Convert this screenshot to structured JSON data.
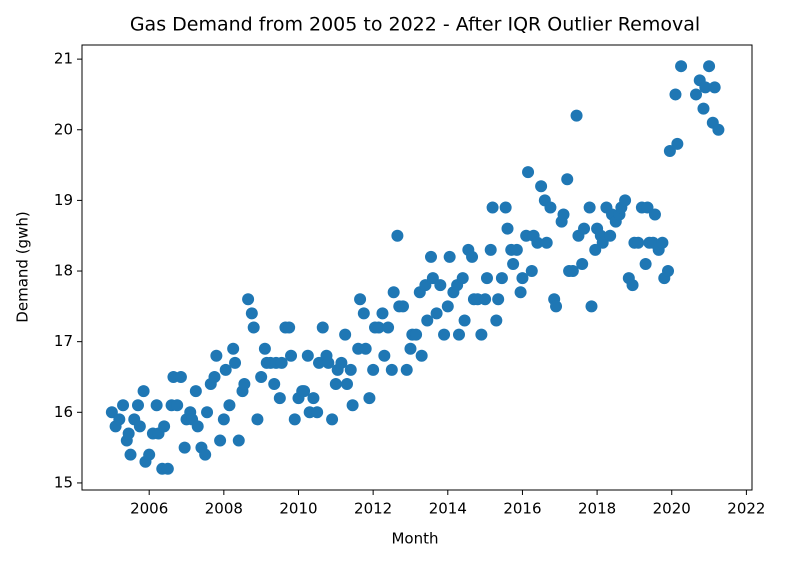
{
  "chart_data": {
    "type": "scatter",
    "title": "Gas Demand from 2005 to 2022 - After IQR Outlier Removal",
    "xlabel": "Month",
    "ylabel": "Demand (gwh)",
    "color": "#1f77b4",
    "xlim": [
      2004.2,
      2022.15
    ],
    "ylim": [
      14.9,
      21.2
    ],
    "xticks": [
      2006,
      2008,
      2010,
      2012,
      2014,
      2016,
      2018,
      2020,
      2022
    ],
    "yticks": [
      15,
      16,
      17,
      18,
      19,
      20,
      21
    ],
    "x": [
      2005.0,
      2005.1,
      2005.2,
      2005.3,
      2005.4,
      2005.45,
      2005.5,
      2005.6,
      2005.7,
      2005.75,
      2005.85,
      2005.9,
      2006.0,
      2006.1,
      2006.2,
      2006.25,
      2006.35,
      2006.4,
      2006.5,
      2006.6,
      2006.65,
      2006.75,
      2006.85,
      2006.95,
      2007.0,
      2007.1,
      2007.15,
      2007.25,
      2007.3,
      2007.4,
      2007.5,
      2007.55,
      2007.65,
      2007.75,
      2007.8,
      2007.9,
      2008.0,
      2008.05,
      2008.15,
      2008.25,
      2008.3,
      2008.4,
      2008.5,
      2008.55,
      2008.65,
      2008.75,
      2008.8,
      2008.9,
      2009.0,
      2009.1,
      2009.15,
      2009.25,
      2009.35,
      2009.4,
      2009.5,
      2009.55,
      2009.65,
      2009.75,
      2009.8,
      2009.9,
      2010.0,
      2010.1,
      2010.15,
      2010.25,
      2010.3,
      2010.4,
      2010.5,
      2010.55,
      2010.65,
      2010.75,
      2010.8,
      2010.9,
      2011.0,
      2011.05,
      2011.15,
      2011.25,
      2011.3,
      2011.4,
      2011.45,
      2011.6,
      2011.65,
      2011.75,
      2011.8,
      2011.9,
      2012.0,
      2012.05,
      2012.15,
      2012.25,
      2012.3,
      2012.4,
      2012.5,
      2012.55,
      2012.65,
      2012.7,
      2012.8,
      2012.9,
      2013.0,
      2013.05,
      2013.15,
      2013.25,
      2013.3,
      2013.4,
      2013.45,
      2013.55,
      2013.6,
      2013.7,
      2013.8,
      2013.9,
      2014.0,
      2014.05,
      2014.15,
      2014.25,
      2014.3,
      2014.4,
      2014.45,
      2014.55,
      2014.65,
      2014.7,
      2014.8,
      2014.9,
      2015.0,
      2015.05,
      2015.15,
      2015.2,
      2015.3,
      2015.35,
      2015.45,
      2015.55,
      2015.6,
      2015.7,
      2015.75,
      2015.85,
      2015.95,
      2016.0,
      2016.1,
      2016.15,
      2016.25,
      2016.3,
      2016.4,
      2016.5,
      2016.6,
      2016.65,
      2016.75,
      2016.85,
      2016.9,
      2017.05,
      2017.1,
      2017.2,
      2017.25,
      2017.35,
      2017.45,
      2017.5,
      2017.6,
      2017.65,
      2017.8,
      2017.85,
      2017.95,
      2018.0,
      2018.1,
      2018.15,
      2018.25,
      2018.35,
      2018.4,
      2018.5,
      2018.6,
      2018.65,
      2018.75,
      2018.85,
      2018.95,
      2019.0,
      2019.1,
      2019.2,
      2019.3,
      2019.35,
      2019.4,
      2019.5,
      2019.55,
      2019.65,
      2019.75,
      2019.8,
      2019.9,
      2019.95,
      2020.1,
      2020.15,
      2020.25,
      2020.65,
      2020.75,
      2020.85,
      2020.9,
      2021.0,
      2021.1,
      2021.15,
      2021.25
    ],
    "values": [
      16.0,
      15.8,
      15.9,
      16.1,
      15.6,
      15.7,
      15.4,
      15.9,
      16.1,
      15.8,
      16.3,
      15.3,
      15.4,
      15.7,
      16.1,
      15.7,
      15.2,
      15.8,
      15.2,
      16.1,
      16.5,
      16.1,
      16.5,
      15.5,
      15.9,
      16.0,
      15.9,
      16.3,
      15.8,
      15.5,
      15.4,
      16.0,
      16.4,
      16.5,
      16.8,
      15.6,
      15.9,
      16.6,
      16.1,
      16.9,
      16.7,
      15.6,
      16.3,
      16.4,
      17.6,
      17.4,
      17.2,
      15.9,
      16.5,
      16.9,
      16.7,
      16.7,
      16.4,
      16.7,
      16.2,
      16.7,
      17.2,
      17.2,
      16.8,
      15.9,
      16.2,
      16.3,
      16.3,
      16.8,
      16.0,
      16.2,
      16.0,
      16.7,
      17.2,
      16.8,
      16.7,
      15.9,
      16.4,
      16.6,
      16.7,
      17.1,
      16.4,
      16.6,
      16.1,
      16.9,
      17.6,
      17.4,
      16.9,
      16.2,
      16.6,
      17.2,
      17.2,
      17.4,
      16.8,
      17.2,
      16.6,
      17.7,
      18.5,
      17.5,
      17.5,
      16.6,
      16.9,
      17.1,
      17.1,
      17.7,
      16.8,
      17.8,
      17.3,
      18.2,
      17.9,
      17.4,
      17.8,
      17.1,
      17.5,
      18.2,
      17.7,
      17.8,
      17.1,
      17.9,
      17.3,
      18.3,
      18.2,
      17.6,
      17.6,
      17.1,
      17.6,
      17.9,
      18.3,
      18.9,
      17.3,
      17.6,
      17.9,
      18.9,
      18.6,
      18.3,
      18.1,
      18.3,
      17.7,
      17.9,
      18.5,
      19.4,
      18.0,
      18.5,
      18.4,
      19.2,
      19.0,
      18.4,
      18.9,
      17.6,
      17.5,
      18.7,
      18.8,
      19.3,
      18.0,
      18.0,
      20.2,
      18.5,
      18.1,
      18.6,
      18.9,
      17.5,
      18.3,
      18.6,
      18.5,
      18.4,
      18.9,
      18.5,
      18.8,
      18.7,
      18.8,
      18.9,
      19.0,
      17.9,
      17.8,
      18.4,
      18.4,
      18.9,
      18.1,
      18.9,
      18.4,
      18.4,
      18.8,
      18.3,
      18.4,
      17.9,
      18.0,
      19.7,
      20.5,
      19.8,
      20.9,
      20.5,
      20.7,
      20.3,
      20.6,
      20.9,
      20.1,
      20.6,
      20.0
    ]
  }
}
